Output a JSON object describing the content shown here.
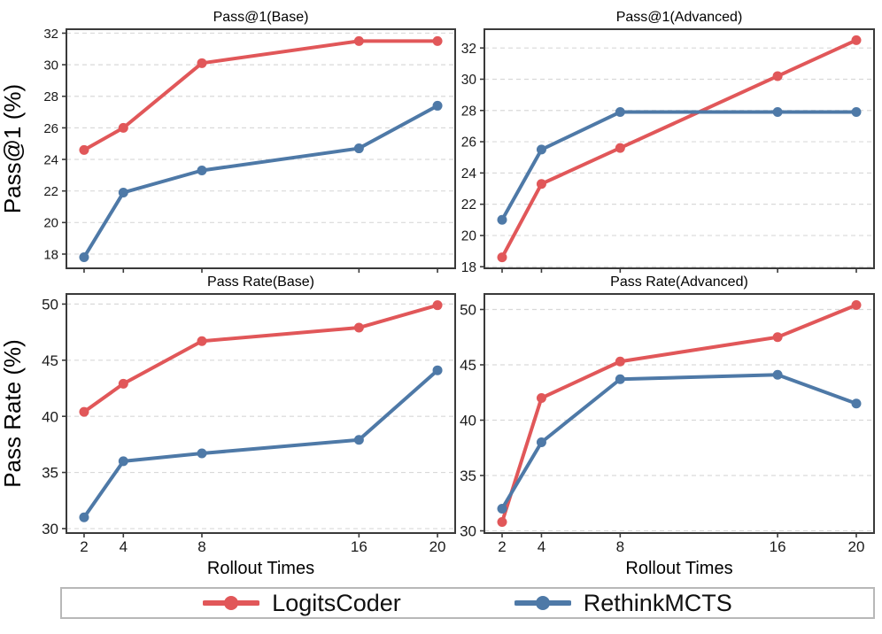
{
  "figure": {
    "background": "#ffffff",
    "axis_color": "#3a3a3a",
    "grid_color": "#d9d9d9",
    "tick_label_color": "#1a1a1a"
  },
  "legend": {
    "border_color": "#b8b8b8",
    "entries": [
      {
        "label": "LogitsCoder",
        "color": "#E15759",
        "marker": "circle"
      },
      {
        "label": "RethinkMCTS",
        "color": "#4E79A7",
        "marker": "circle"
      }
    ]
  },
  "chart_data": [
    {
      "id": "pass1_base",
      "type": "line",
      "title": "Pass@1(Base)",
      "ylabel": "Pass@1 (%)",
      "xlabel": "",
      "x": [
        2,
        4,
        8,
        16,
        20
      ],
      "xticks": [
        2,
        4,
        8,
        16,
        20
      ],
      "show_x_tick_labels": false,
      "yticks": [
        18,
        20,
        22,
        24,
        26,
        28,
        30,
        32
      ],
      "xlim": [
        1.1,
        20.9
      ],
      "ylim": [
        17.1,
        32.25
      ],
      "grid": "horizontal-dashed",
      "series": [
        {
          "name": "LogitsCoder",
          "color": "#E15759",
          "values": [
            24.6,
            26.0,
            30.1,
            31.5,
            31.5
          ]
        },
        {
          "name": "RethinkMCTS",
          "color": "#4E79A7",
          "values": [
            17.8,
            21.9,
            23.3,
            24.7,
            27.4
          ]
        }
      ]
    },
    {
      "id": "pass1_advanced",
      "type": "line",
      "title": "Pass@1(Advanced)",
      "ylabel": "",
      "xlabel": "",
      "x": [
        2,
        4,
        8,
        16,
        20
      ],
      "xticks": [
        2,
        4,
        8,
        16,
        20
      ],
      "show_x_tick_labels": false,
      "yticks": [
        18,
        20,
        22,
        24,
        26,
        28,
        30,
        32
      ],
      "xlim": [
        1.1,
        20.9
      ],
      "ylim": [
        17.9,
        33.2
      ],
      "grid": "horizontal-dashed",
      "series": [
        {
          "name": "LogitsCoder",
          "color": "#E15759",
          "values": [
            18.6,
            23.3,
            25.6,
            30.2,
            32.5
          ]
        },
        {
          "name": "RethinkMCTS",
          "color": "#4E79A7",
          "values": [
            21.0,
            25.5,
            27.9,
            27.9,
            27.9
          ]
        }
      ]
    },
    {
      "id": "passrate_base",
      "type": "line",
      "title": "Pass Rate(Base)",
      "ylabel": "Pass Rate (%)",
      "xlabel": "Rollout Times",
      "x": [
        2,
        4,
        8,
        16,
        20
      ],
      "xticks": [
        2,
        4,
        8,
        16,
        20
      ],
      "show_x_tick_labels": true,
      "yticks": [
        30,
        35,
        40,
        45,
        50
      ],
      "xlim": [
        1.1,
        20.9
      ],
      "ylim": [
        29.6,
        50.9
      ],
      "grid": "horizontal-dashed",
      "series": [
        {
          "name": "LogitsCoder",
          "color": "#E15759",
          "values": [
            40.4,
            42.9,
            46.7,
            47.9,
            49.9
          ]
        },
        {
          "name": "RethinkMCTS",
          "color": "#4E79A7",
          "values": [
            31.0,
            36.0,
            36.7,
            37.9,
            44.1
          ]
        }
      ]
    },
    {
      "id": "passrate_advanced",
      "type": "line",
      "title": "Pass Rate(Advanced)",
      "ylabel": "",
      "xlabel": "Rollout Times",
      "x": [
        2,
        4,
        8,
        16,
        20
      ],
      "xticks": [
        2,
        4,
        8,
        16,
        20
      ],
      "show_x_tick_labels": true,
      "yticks": [
        30,
        35,
        40,
        45,
        50
      ],
      "xlim": [
        1.1,
        20.9
      ],
      "ylim": [
        29.8,
        51.4
      ],
      "grid": "horizontal-dashed",
      "series": [
        {
          "name": "LogitsCoder",
          "color": "#E15759",
          "values": [
            30.8,
            42.0,
            45.3,
            47.5,
            50.4
          ]
        },
        {
          "name": "RethinkMCTS",
          "color": "#4E79A7",
          "values": [
            32.0,
            38.0,
            43.7,
            44.1,
            41.5
          ]
        }
      ]
    }
  ]
}
